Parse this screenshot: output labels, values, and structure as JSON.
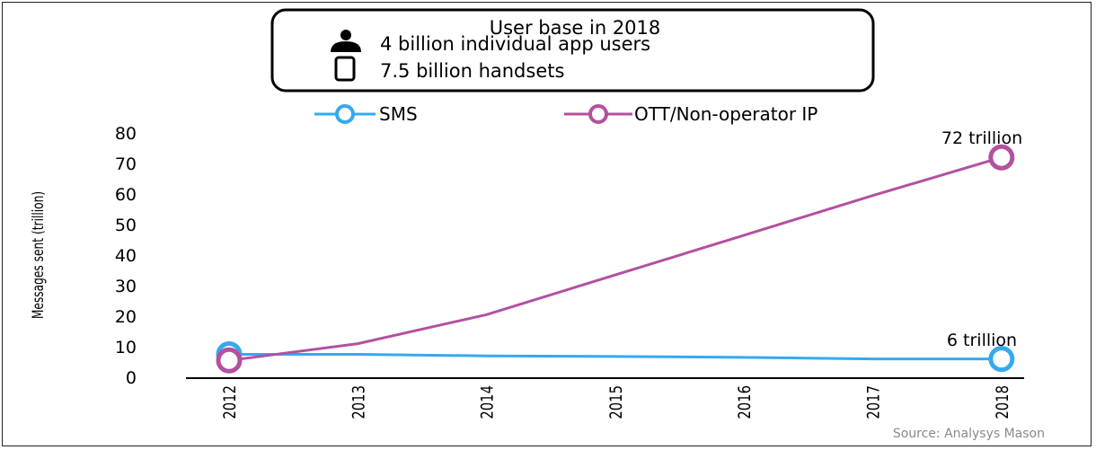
{
  "info_box": {
    "title": "User base in 2018",
    "line1": "4 billion individual app users",
    "line2": "7.5 billion handsets",
    "icon1": "person-icon",
    "icon2": "handset-icon"
  },
  "source": "Source: Analysys Mason",
  "chart_data": {
    "type": "line",
    "title": "",
    "xlabel": "",
    "ylabel": "Messages sent (trillion)",
    "ylim": [
      0,
      80
    ],
    "yticks": [
      0,
      10,
      20,
      30,
      40,
      50,
      60,
      70,
      80
    ],
    "categories": [
      "2012",
      "2013",
      "2014",
      "2015",
      "2016",
      "2017",
      "2018"
    ],
    "legend_position": "top",
    "grid": false,
    "series": [
      {
        "name": "SMS",
        "color": "#35a9f0",
        "values": [
          7.5,
          7.5,
          7,
          6.8,
          6.5,
          6,
          6
        ],
        "end_label": "6  trillion"
      },
      {
        "name": "OTT/Non-operator IP",
        "color": "#b3509f",
        "values": [
          5.5,
          11,
          20.5,
          33.5,
          46.5,
          59.5,
          72
        ],
        "end_label": "72 trillion"
      }
    ]
  }
}
